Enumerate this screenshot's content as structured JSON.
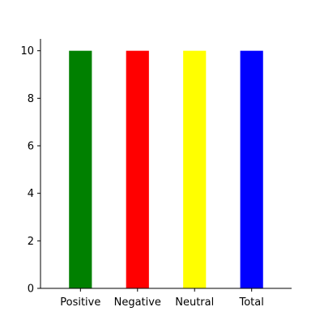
{
  "chart_data": {
    "type": "bar",
    "title": "",
    "xlabel": "",
    "ylabel": "",
    "categories": [
      "Positive",
      "Negative",
      "Neutral",
      "Total"
    ],
    "values": [
      10,
      10,
      10,
      10
    ],
    "colors": [
      "#008000",
      "#ff0000",
      "#ffff00",
      "#0000ff"
    ],
    "ylim": [
      0,
      10.5
    ],
    "yticks": [
      0,
      2,
      4,
      6,
      8,
      10
    ],
    "grid": false,
    "legend": "none",
    "spines": "left-bottom"
  }
}
